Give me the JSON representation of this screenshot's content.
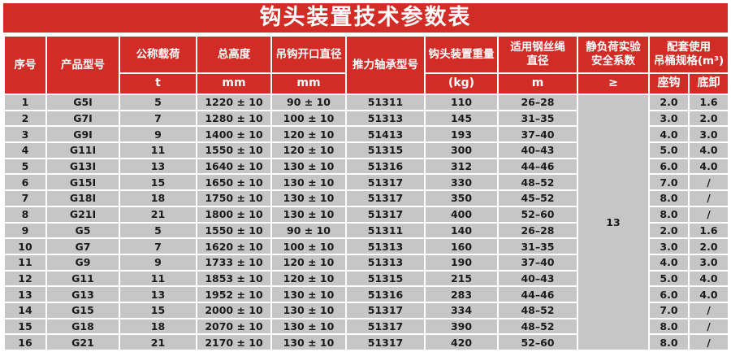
{
  "title": "钩头装置技术参数表",
  "colors": {
    "header_red": "#d22c26",
    "row_gray": "#c6c6c6",
    "text_dark": "#1b1b1b",
    "grid_white": "#ffffff"
  },
  "header": {
    "serial": "序号",
    "model": "产品型号",
    "load": "公称载荷",
    "load_unit": "t",
    "height": "总高度",
    "height_unit": "mm",
    "opening": "吊钩开口直径",
    "opening_unit": "mm",
    "bearing": "推力轴承型号",
    "weight": "钩头装置重量",
    "weight_unit": "(kg)",
    "rope": "适用钢丝绳\n直径",
    "rope_unit": "m",
    "safety": "静负荷实验\n安全系数",
    "safety_unit": "≥",
    "bucket": "配套使用\n吊桶规格(m³)",
    "bucket_seat": "座钩",
    "bucket_bottom": "底卸"
  },
  "safety_factor_value": "13",
  "rows": [
    [
      "1",
      "G5Ⅰ",
      "5",
      "1220 ± 10",
      "90 ± 10",
      "51311",
      "110",
      "26–28",
      "2.0",
      "1.6"
    ],
    [
      "2",
      "G7Ⅰ",
      "7",
      "1280 ± 10",
      "100 ± 10",
      "51313",
      "145",
      "31–35",
      "3.0",
      "2.0"
    ],
    [
      "3",
      "G9Ⅰ",
      "9",
      "1400 ± 10",
      "120 ± 10",
      "51413",
      "193",
      "37–40",
      "4.0",
      "3.0"
    ],
    [
      "4",
      "G11Ⅰ",
      "11",
      "1550 ± 10",
      "120 ± 10",
      "51315",
      "300",
      "40–43",
      "5.0",
      "4.0"
    ],
    [
      "5",
      "G13Ⅰ",
      "13",
      "1640 ± 10",
      "130 ± 10",
      "51316",
      "312",
      "44–46",
      "6.0",
      "4.0"
    ],
    [
      "6",
      "G15Ⅰ",
      "15",
      "1650 ± 10",
      "130 ± 10",
      "51317",
      "330",
      "48–52",
      "7.0",
      "/"
    ],
    [
      "7",
      "G18Ⅰ",
      "18",
      "1750 ± 10",
      "130 ± 10",
      "51317",
      "350",
      "45–52",
      "8.0",
      "/"
    ],
    [
      "8",
      "G21Ⅰ",
      "21",
      "1800 ± 10",
      "130 ± 10",
      "51317",
      "400",
      "52–60",
      "8.0",
      "/"
    ],
    [
      "9",
      "G5",
      "5",
      "1550 ± 10",
      "90 ± 10",
      "51311",
      "140",
      "26–28",
      "2.0",
      "1.6"
    ],
    [
      "10",
      "G7",
      "7",
      "1620 ± 10",
      "100 ± 10",
      "51313",
      "160",
      "31–35",
      "3.0",
      "2.0"
    ],
    [
      "11",
      "G9",
      "9",
      "1733 ± 10",
      "120 ± 10",
      "51313",
      "190",
      "37–40",
      "4.0",
      "3.0"
    ],
    [
      "12",
      "G11",
      "11",
      "1853 ± 10",
      "120 ± 10",
      "51315",
      "215",
      "40–43",
      "5.0",
      "4.0"
    ],
    [
      "13",
      "G13",
      "13",
      "1952 ± 10",
      "130 ± 10",
      "51316",
      "283",
      "44–46",
      "6.0",
      "4.0"
    ],
    [
      "14",
      "G15",
      "15",
      "2000 ± 10",
      "130 ± 10",
      "51317",
      "334",
      "48–52",
      "7.0",
      "/"
    ],
    [
      "15",
      "G18",
      "18",
      "2070 ± 10",
      "130 ± 10",
      "51317",
      "390",
      "48–52",
      "8.0",
      "/"
    ],
    [
      "16",
      "G21",
      "21",
      "2170 ± 10",
      "130 ± 10",
      "51317",
      "420",
      "52–60",
      "8.0",
      "/"
    ]
  ],
  "column_semantics": [
    "serial",
    "model",
    "load",
    "height",
    "opening",
    "bearing",
    "weight",
    "rope",
    "bucket-seat",
    "bucket-bottom"
  ]
}
